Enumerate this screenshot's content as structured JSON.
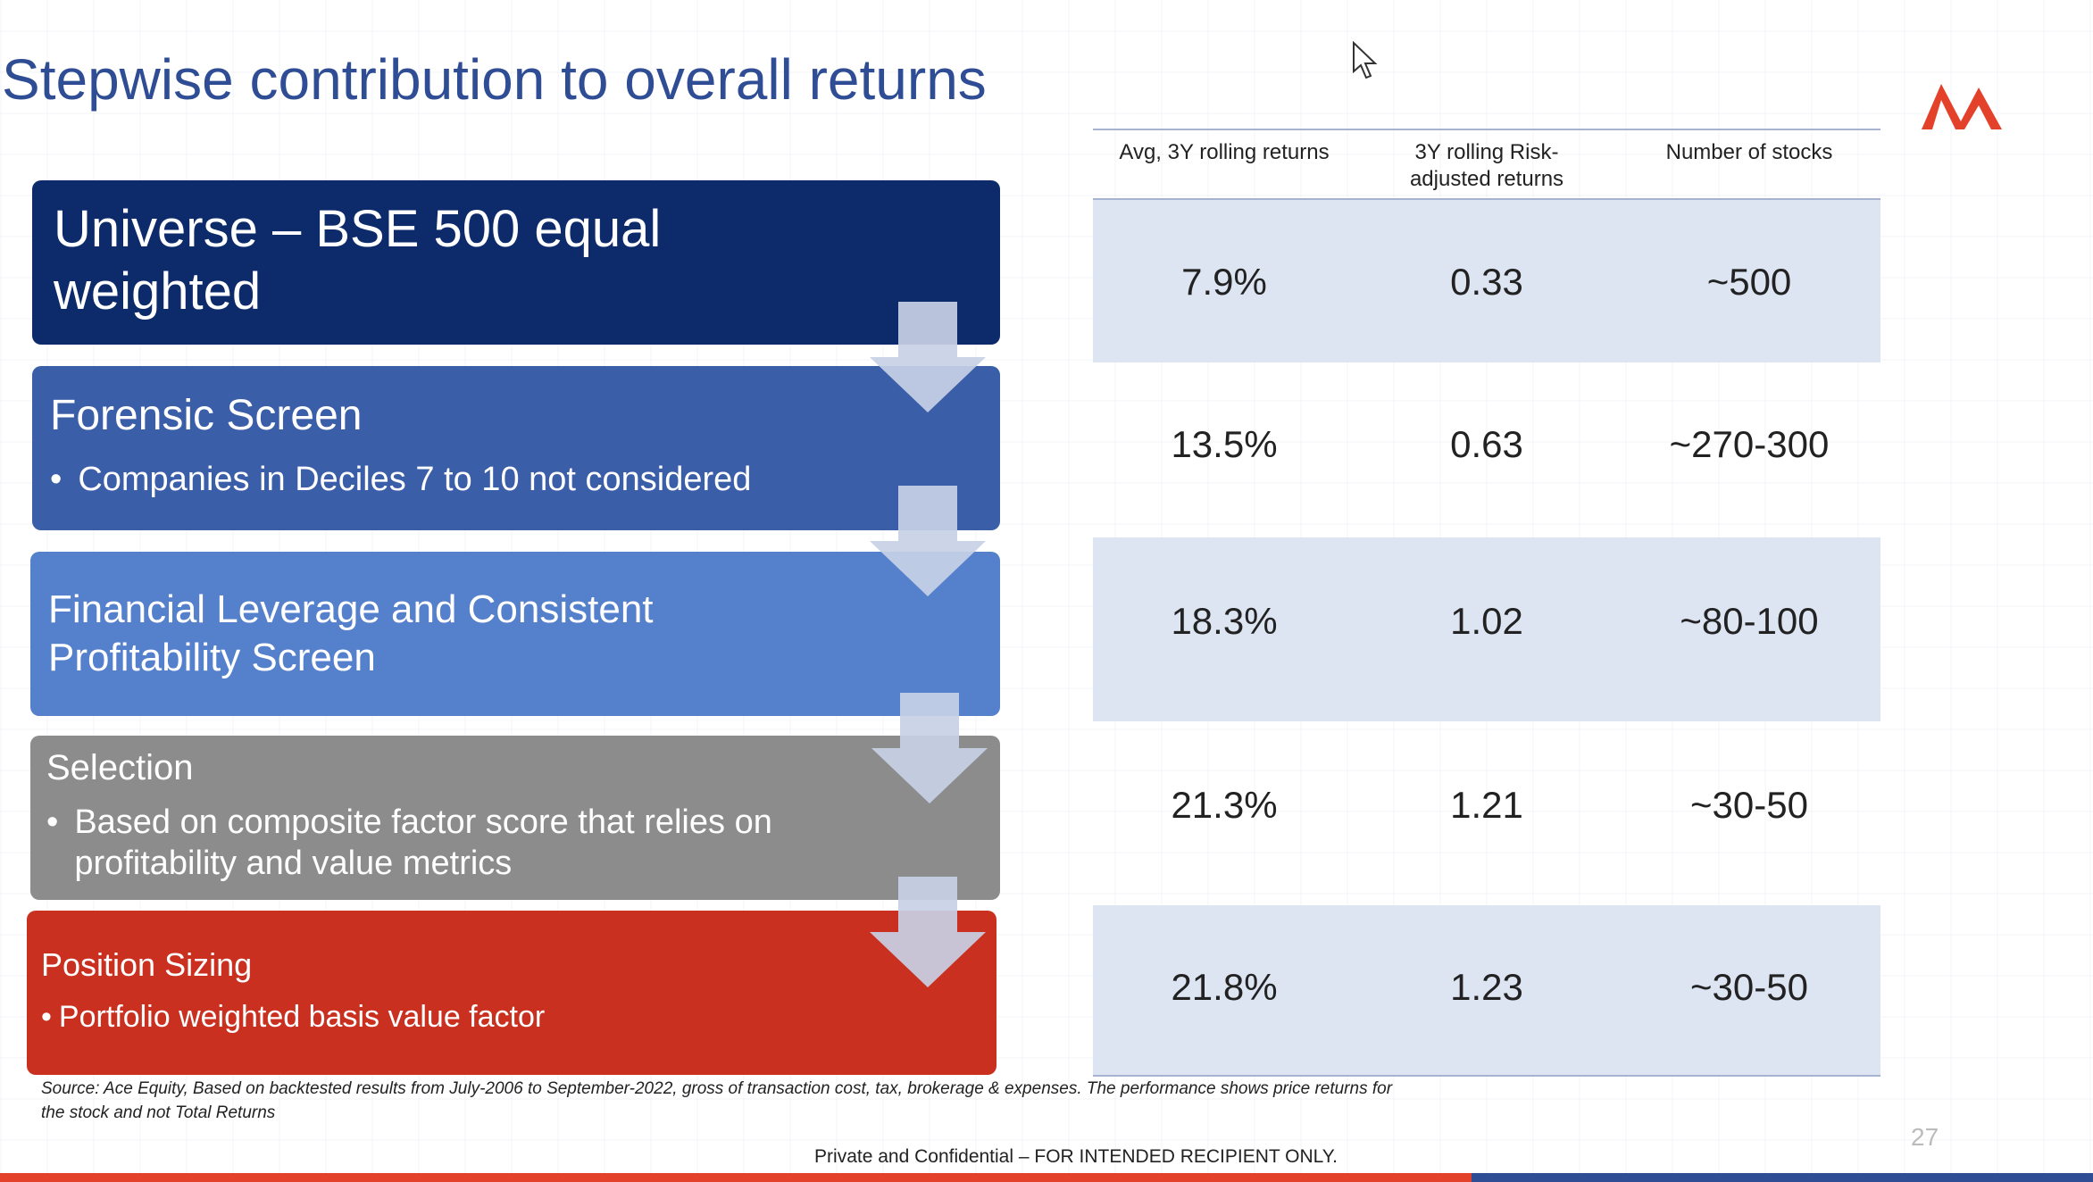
{
  "slide": {
    "title": "Stepwise contribution to overall returns",
    "page_number": "27",
    "source_note": "Source: Ace Equity, Based on backtested results from July-2006 to September-2022, gross of transaction cost, tax, brokerage & expenses. The performance shows price returns for the stock and not Total Returns",
    "footer": "Private and Confidential – FOR INTENDED RECIPIENT ONLY.",
    "colors": {
      "title": "#2f4d94",
      "step_1": "#0d2b6b",
      "step_2": "#3b5ea8",
      "step_3": "#5580cc",
      "step_4": "#8c8c8c",
      "step_5": "#c9301f",
      "arrow": "#c8d1e6",
      "band": "#dde5f3",
      "logo": "#e3412a"
    },
    "logo_icon": "double-peak-logo-icon",
    "cursor_icon": "mouse-pointer-icon"
  },
  "steps": [
    {
      "title": "Universe – BSE 500  equal weighted",
      "bullet": ""
    },
    {
      "title": "Forensic Screen",
      "bullet": "Companies in Deciles 7 to 10 not considered"
    },
    {
      "title": "Financial Leverage and Consistent Profitability Screen",
      "bullet": ""
    },
    {
      "title": "Selection",
      "bullet": "Based on composite factor score that relies on profitability and value metrics"
    },
    {
      "title": "Position Sizing",
      "bullet": "Portfolio weighted basis value factor"
    }
  ],
  "table": {
    "headers": [
      "Avg, 3Y rolling returns",
      "3Y rolling Risk-adjusted returns",
      "Number of stocks"
    ],
    "rows": [
      [
        "7.9%",
        "0.33",
        "~500"
      ],
      [
        "13.5%",
        "0.63",
        "~270-300"
      ],
      [
        "18.3%",
        "1.02",
        "~80-100"
      ],
      [
        "21.3%",
        "1.21",
        "~30-50"
      ],
      [
        "21.8%",
        "1.23",
        "~30-50"
      ]
    ]
  }
}
